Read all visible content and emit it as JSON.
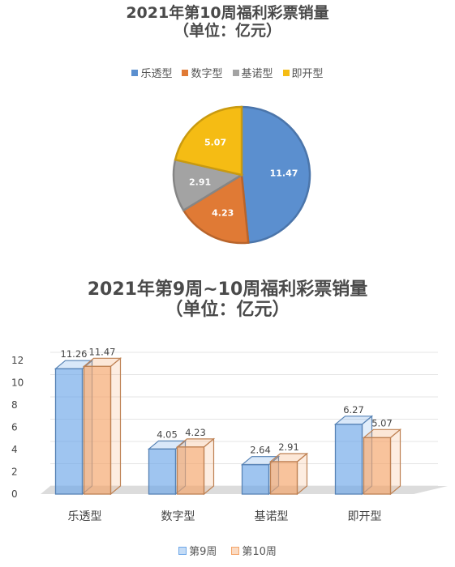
{
  "chart_data": [
    {
      "type": "pie",
      "title": [
        "2021年第10周福利彩票销量",
        "（单位：亿元）"
      ],
      "categories": [
        "乐透型",
        "数字型",
        "基诺型",
        "即开型"
      ],
      "values": [
        11.47,
        4.23,
        2.91,
        5.07
      ],
      "colors": [
        "#5b8fcf",
        "#e07a35",
        "#a3a3a3",
        "#f5bc14"
      ],
      "legend_position": "top"
    },
    {
      "type": "bar",
      "title": [
        "2021年第9周~10周福利彩票销量",
        "（单位：亿元）"
      ],
      "categories": [
        "乐透型",
        "数字型",
        "基诺型",
        "即开型"
      ],
      "series": [
        {
          "name": "第9周",
          "values": [
            11.26,
            4.05,
            2.64,
            6.27
          ],
          "color": "#6fa8e8"
        },
        {
          "name": "第10周",
          "values": [
            11.47,
            4.23,
            2.91,
            5.07
          ],
          "color": "#f4a56a"
        }
      ],
      "ylim": [
        0,
        12
      ],
      "yticks": [
        "0",
        "2",
        "4",
        "6",
        "8",
        "10",
        "12"
      ],
      "grid": true,
      "legend_position": "bottom",
      "style": "3d"
    }
  ]
}
